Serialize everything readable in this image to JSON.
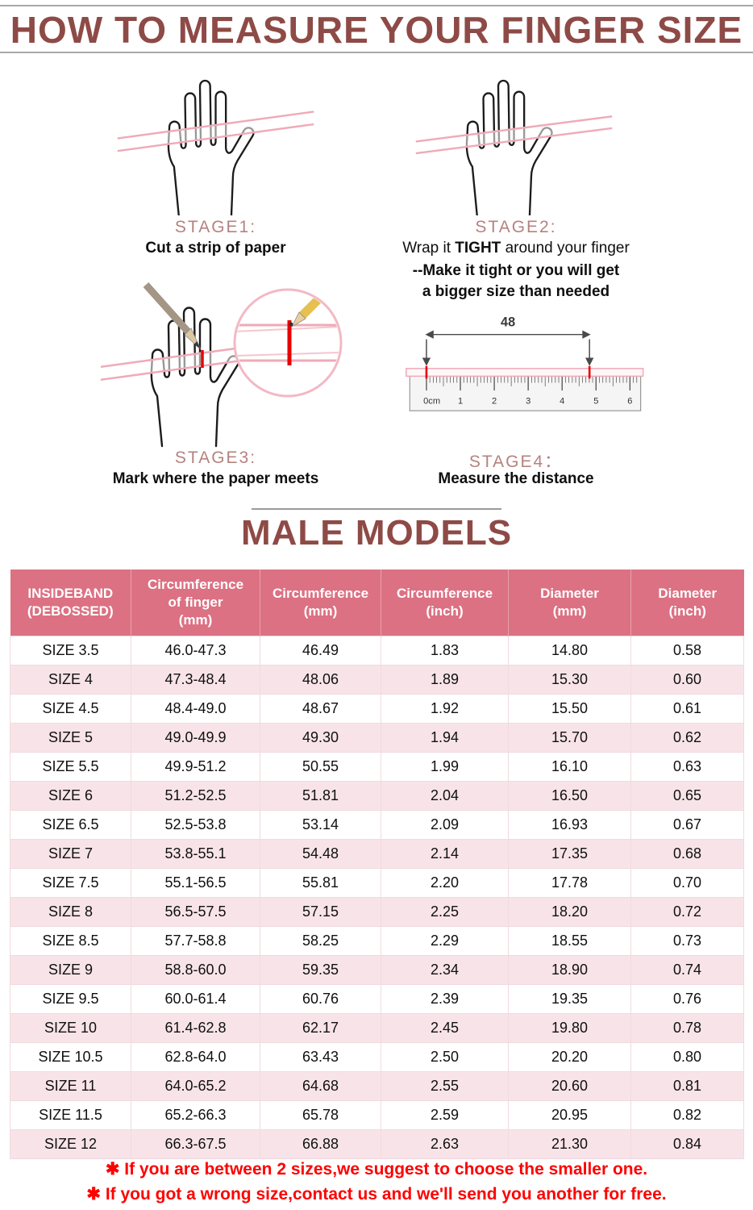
{
  "page": {
    "title": "HOW TO MEASURE YOUR FINGER SIZE",
    "section_title": "MALE MODELS"
  },
  "stages": [
    {
      "label": "STAGE1:",
      "caption": "Cut a strip of paper"
    },
    {
      "label": "STAGE2:",
      "caption_pre": "Wrap it ",
      "caption_bold": "TIGHT",
      "caption_post": " around your finger",
      "caption_line2": "--Make it tight or you will get",
      "caption_line3": "a bigger size than needed"
    },
    {
      "label": "STAGE3:",
      "caption": "Mark where the paper meets"
    },
    {
      "label": "STAGE4：",
      "caption": "Measure the distance",
      "ruler": {
        "distance_label": "48",
        "tick_labels": [
          "0cm",
          "1",
          "2",
          "3",
          "4",
          "5",
          "6"
        ]
      }
    }
  ],
  "table": {
    "headers": [
      "INSIDEBAND\n(DEBOSSED)",
      "Circumference\nof finger\n(mm)",
      "Circumference\n(mm)",
      "Circumference\n(inch)",
      "Diameter\n(mm)",
      "Diameter\n(inch)"
    ],
    "rows": [
      [
        "SIZE 3.5",
        "46.0-47.3",
        "46.49",
        "1.83",
        "14.80",
        "0.58"
      ],
      [
        "SIZE 4",
        "47.3-48.4",
        "48.06",
        "1.89",
        "15.30",
        "0.60"
      ],
      [
        "SIZE 4.5",
        "48.4-49.0",
        "48.67",
        "1.92",
        "15.50",
        "0.61"
      ],
      [
        "SIZE 5",
        "49.0-49.9",
        "49.30",
        "1.94",
        "15.70",
        "0.62"
      ],
      [
        "SIZE 5.5",
        "49.9-51.2",
        "50.55",
        "1.99",
        "16.10",
        "0.63"
      ],
      [
        "SIZE 6",
        "51.2-52.5",
        "51.81",
        "2.04",
        "16.50",
        "0.65"
      ],
      [
        "SIZE 6.5",
        "52.5-53.8",
        "53.14",
        "2.09",
        "16.93",
        "0.67"
      ],
      [
        "SIZE 7",
        "53.8-55.1",
        "54.48",
        "2.14",
        "17.35",
        "0.68"
      ],
      [
        "SIZE 7.5",
        "55.1-56.5",
        "55.81",
        "2.20",
        "17.78",
        "0.70"
      ],
      [
        "SIZE 8",
        "56.5-57.5",
        "57.15",
        "2.25",
        "18.20",
        "0.72"
      ],
      [
        "SIZE 8.5",
        "57.7-58.8",
        "58.25",
        "2.29",
        "18.55",
        "0.73"
      ],
      [
        "SIZE 9",
        "58.8-60.0",
        "59.35",
        "2.34",
        "18.90",
        "0.74"
      ],
      [
        "SIZE 9.5",
        "60.0-61.4",
        "60.76",
        "2.39",
        "19.35",
        "0.76"
      ],
      [
        "SIZE 10",
        "61.4-62.8",
        "62.17",
        "2.45",
        "19.80",
        "0.78"
      ],
      [
        "SIZE 10.5",
        "62.8-64.0",
        "63.43",
        "2.50",
        "20.20",
        "0.80"
      ],
      [
        "SIZE 11",
        "64.0-65.2",
        "64.68",
        "2.55",
        "20.60",
        "0.81"
      ],
      [
        "SIZE 11.5",
        "65.2-66.3",
        "65.78",
        "2.59",
        "20.95",
        "0.82"
      ],
      [
        "SIZE 12",
        "66.3-67.5",
        "66.88",
        "2.63",
        "21.30",
        "0.84"
      ]
    ]
  },
  "notes": [
    "✱ If you are between 2 sizes,we suggest to choose the smaller one.",
    "✱ If you got a wrong size,contact us and we'll send you another for free."
  ],
  "colors": {
    "title": "#8e4a46",
    "stage_label": "#b5827f",
    "table_header_bg": "#dc7183",
    "table_row_alt_bg": "#f8e4e8",
    "note_red": "#fe0000",
    "strip_pink": "#efaab8",
    "mark_red": "#e80000"
  }
}
